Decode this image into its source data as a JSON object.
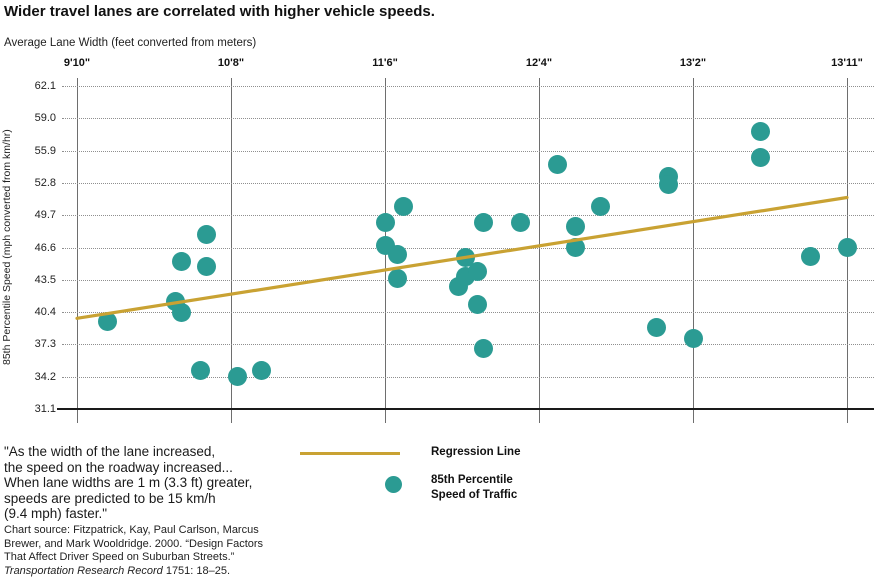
{
  "title": "Wider travel lanes are correlated with higher vehicle speeds.",
  "colors": {
    "teal": "#2B9B93",
    "gold": "#C9A233",
    "text": "#1A1A1A",
    "grid_dotted": "#8F8F8F",
    "grid_vertical": "#6E6E6E",
    "axis": "#1A1A1A"
  },
  "chart_data": {
    "type": "scatter",
    "title": "Wider travel lanes are correlated with higher vehicle speeds.",
    "xlabel": "Average Lane Width (feet converted from meters)",
    "ylabel": "85th Percentile Speed (mph converted from km/hr)",
    "x_units_note": "x positions in meters, labeled as feet-inches",
    "x_ticks": [
      {
        "pos": 3.0,
        "label": "9'10\""
      },
      {
        "pos": 3.25,
        "label": "10'8\""
      },
      {
        "pos": 3.5,
        "label": "11'6\""
      },
      {
        "pos": 3.75,
        "label": "12'4\""
      },
      {
        "pos": 4.0,
        "label": "13'2\""
      },
      {
        "pos": 4.25,
        "label": "13'11\""
      }
    ],
    "y_ticks": [
      "62.1",
      "59.0",
      "55.9",
      "52.8",
      "49.7",
      "46.6",
      "43.5",
      "40.4",
      "37.3",
      "34.2",
      "31.1"
    ],
    "xlim": [
      3.0,
      4.25
    ],
    "ylim": [
      31.1,
      62.1
    ],
    "grid": "horizontal-dotted-and-vertical-solid",
    "points_m_mph": [
      [
        3.05,
        39.5
      ],
      [
        3.16,
        41.4
      ],
      [
        3.17,
        45.3
      ],
      [
        3.17,
        40.4
      ],
      [
        3.2,
        34.8
      ],
      [
        3.21,
        47.8
      ],
      [
        3.21,
        44.8
      ],
      [
        3.26,
        34.2
      ],
      [
        3.3,
        34.8
      ],
      [
        3.5,
        49.0
      ],
      [
        3.5,
        46.8
      ],
      [
        3.52,
        45.9
      ],
      [
        3.52,
        43.6
      ],
      [
        3.53,
        50.5
      ],
      [
        3.62,
        42.9
      ],
      [
        3.63,
        45.6
      ],
      [
        3.63,
        43.8
      ],
      [
        3.66,
        49.0
      ],
      [
        3.65,
        44.3
      ],
      [
        3.65,
        41.1
      ],
      [
        3.66,
        36.9
      ],
      [
        3.72,
        49.0
      ],
      [
        3.78,
        54.6
      ],
      [
        3.81,
        46.6
      ],
      [
        3.81,
        48.6
      ],
      [
        3.85,
        50.5
      ],
      [
        3.94,
        38.9
      ],
      [
        3.96,
        53.4
      ],
      [
        3.96,
        52.6
      ],
      [
        4.0,
        37.9
      ],
      [
        4.11,
        57.7
      ],
      [
        4.11,
        55.2
      ],
      [
        4.19,
        45.7
      ],
      [
        4.25,
        46.6
      ]
    ],
    "regression": {
      "x1": 3.0,
      "y1": 39.8,
      "x2": 4.25,
      "y2": 51.4
    },
    "legend": {
      "line_label": "Regression Line",
      "dot_label": "85th Percentile\nSpeed of Traffic",
      "position": "below-chart"
    }
  },
  "caption": {
    "quote": "\"As the width of the lane increased,\nthe speed on the roadway increased...\nWhen lane widths are 1 m (3.3 ft) greater,\nspeeds are predicted to be 15 km/h\n(9.4 mph) faster.\""
  },
  "source": {
    "before_italic": "Chart source: Fitzpatrick, Kay, Paul Carlson, Marcus\nBrewer, and Mark Wooldridge. 2000. “Design Factors\nThat Affect Driver Speed on Suburban Streets.”\n",
    "italic": "Transportation Research Record",
    "after_italic": " 1751: 18–25."
  }
}
